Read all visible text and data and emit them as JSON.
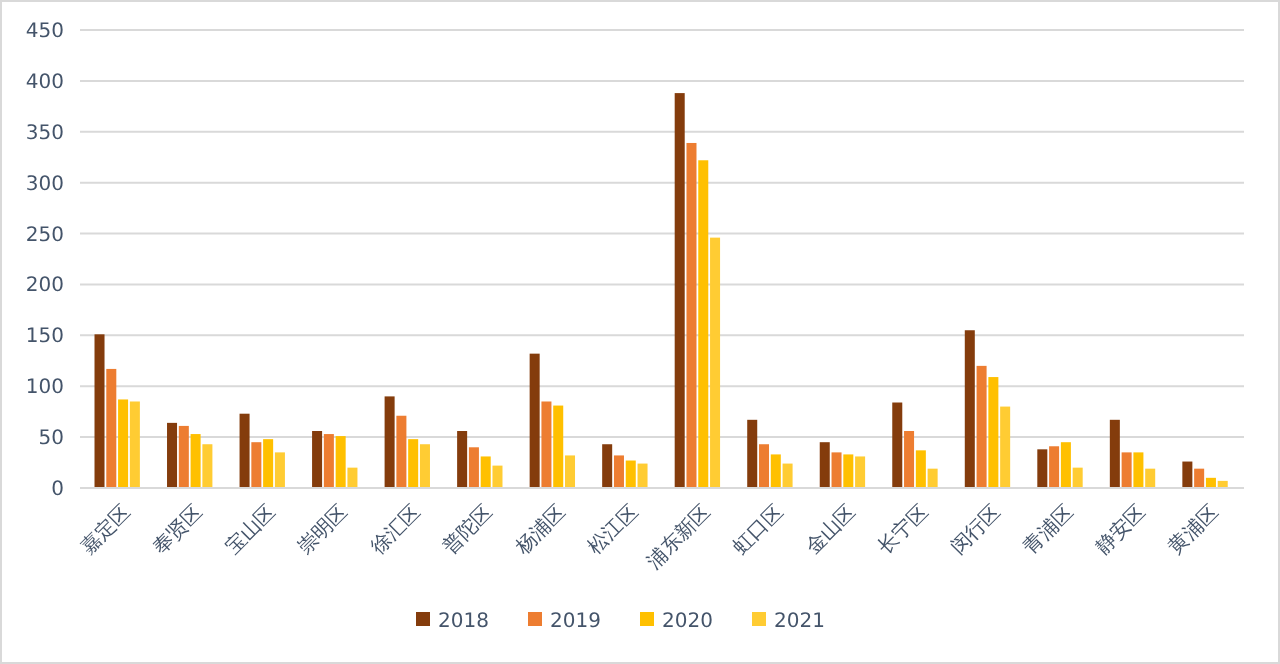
{
  "chart_data": {
    "type": "bar",
    "categories": [
      "嘉定区",
      "奉贤区",
      "宝山区",
      "崇明区",
      "徐汇区",
      "普陀区",
      "杨浦区",
      "松江区",
      "浦东新区",
      "虹口区",
      "金山区",
      "长宁区",
      "闵行区",
      "青浦区",
      "静安区",
      "黄浦区"
    ],
    "series": [
      {
        "name": "2018",
        "color": "#843c0c",
        "values": [
          151,
          64,
          73,
          56,
          90,
          56,
          132,
          43,
          388,
          67,
          45,
          84,
          155,
          38,
          67,
          26
        ]
      },
      {
        "name": "2019",
        "color": "#ed7d31",
        "values": [
          117,
          61,
          45,
          53,
          71,
          40,
          85,
          32,
          339,
          43,
          35,
          56,
          120,
          41,
          35,
          19
        ]
      },
      {
        "name": "2020",
        "color": "#ffc000",
        "values": [
          87,
          53,
          48,
          51,
          48,
          31,
          81,
          27,
          322,
          33,
          33,
          37,
          109,
          45,
          35,
          10
        ]
      },
      {
        "name": "2021",
        "color": "#ffcc33",
        "values": [
          85,
          43,
          35,
          20,
          43,
          22,
          32,
          24,
          246,
          24,
          31,
          19,
          80,
          20,
          19,
          7
        ]
      }
    ],
    "ylim": [
      0,
      450
    ],
    "yticks": [
      0,
      50,
      100,
      150,
      200,
      250,
      300,
      350,
      400,
      450
    ],
    "grid": "y",
    "legend": "bottom"
  }
}
